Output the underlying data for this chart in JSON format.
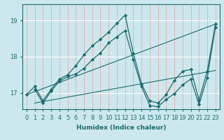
{
  "xlabel": "Humidex (Indice chaleur)",
  "bg_color": "#cce8ee",
  "grid_color": "#ffffff",
  "line_color": "#1a6b6b",
  "xlim": [
    -0.5,
    23.5
  ],
  "ylim": [
    16.55,
    19.45
  ],
  "yticks": [
    17,
    18,
    19
  ],
  "xticks": [
    0,
    1,
    2,
    3,
    4,
    5,
    6,
    7,
    8,
    9,
    10,
    11,
    12,
    13,
    14,
    15,
    16,
    17,
    18,
    19,
    20,
    21,
    22,
    23
  ],
  "lines": [
    {
      "x": [
        0,
        1,
        2,
        3,
        4,
        5,
        6,
        7,
        8,
        9,
        10,
        11,
        12,
        13,
        14,
        15,
        16,
        17,
        18,
        19,
        20,
        21,
        22,
        23
      ],
      "y": [
        16.95,
        17.18,
        16.78,
        17.1,
        17.38,
        17.5,
        17.75,
        18.05,
        18.3,
        18.48,
        18.68,
        18.92,
        19.15,
        18.1,
        17.25,
        16.78,
        16.72,
        16.95,
        17.35,
        17.6,
        17.65,
        16.8,
        17.6,
        18.9
      ],
      "has_markers": true
    },
    {
      "x": [
        1,
        2,
        3,
        4,
        5,
        6,
        7,
        8,
        9,
        10,
        11,
        12,
        13,
        14,
        15,
        16,
        17,
        18,
        19,
        20,
        21,
        22,
        23
      ],
      "y": [
        17.1,
        16.72,
        17.05,
        17.32,
        17.45,
        17.52,
        17.68,
        17.92,
        18.1,
        18.38,
        18.55,
        18.72,
        17.92,
        17.18,
        16.65,
        16.62,
        16.82,
        16.98,
        17.22,
        17.38,
        16.68,
        17.42,
        18.82
      ],
      "has_markers": true
    },
    {
      "x": [
        0,
        23
      ],
      "y": [
        16.95,
        18.9
      ],
      "has_markers": false
    },
    {
      "x": [
        1,
        23
      ],
      "y": [
        16.72,
        17.62
      ],
      "has_markers": false
    }
  ]
}
